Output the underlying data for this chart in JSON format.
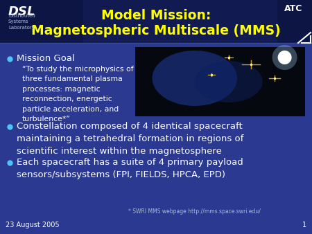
{
  "bg_color": "#2b3990",
  "title_line1": "Model Mission:",
  "title_line2": "Magnetospheric Multiscale (MMS)",
  "title_color": "#ffff00",
  "title_fontsize": 13.5,
  "dsl_text": "DSL",
  "dsl_sub": "Distributed\nSystems\nLaboratory",
  "atc_text": "ATC",
  "header_bg_left": "#0a0f2e",
  "header_bg_center": "#1a2560",
  "bullet_color": "#4fc3f7",
  "text_color": "#ffffff",
  "mission_goal_label": "Mission Goal",
  "mission_goal_quote": "“To study the microphysics of\nthree fundamental plasma\nprocesses: magnetic\nreconnection, energetic\nparticle acceleration, and\nturbulence*”",
  "bullet1": "Constellation composed of 4 identical spacecraft\nmaintaining a tetrahedral formation in regions of\nscientific interest within the magnetosphere",
  "bullet2": "Each spacecraft has a suite of 4 primary payload\nsensors/subsystems (FPI, FIELDS, HPCA, EPD)",
  "footnote": "* SWRI MMS webpage http://mms.space.swri.edu/",
  "date": "23 August 2005",
  "page_num": "1",
  "body_fontsize": 9.5,
  "small_fontsize": 7,
  "quote_fontsize": 7.8
}
